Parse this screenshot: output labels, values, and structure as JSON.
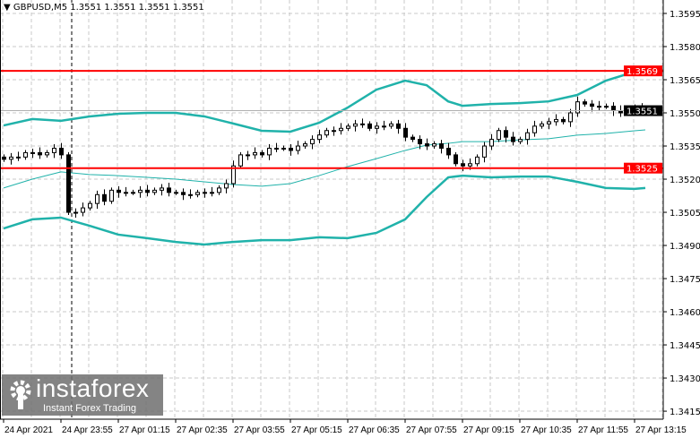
{
  "header": {
    "symbol": "GBPUSD,M5",
    "ohlc": "1.3551 1.3551 1.3551 1.3551"
  },
  "logo": {
    "brand": "instaforex",
    "tagline": "Instant Forex Trading"
  },
  "colors": {
    "bull_body": "#ffffff",
    "bear_body": "#000000",
    "band": "#20b2aa",
    "level": "#ff0000",
    "current_price_box": "#000000"
  },
  "chart_data": {
    "type": "candlestick",
    "ylim": [
      1.3407,
      1.36
    ],
    "y_ticks": [
      "1.3595",
      "1.3580",
      "1.3565",
      "1.3550",
      "1.3535",
      "1.3520",
      "1.3505",
      "1.3490",
      "1.3475",
      "1.3460",
      "1.3445",
      "1.3430",
      "1.3415"
    ],
    "x_ticks": [
      "24 Apr 2021",
      "24 Apr 23:55",
      "27 Apr 01:15",
      "27 Apr 02:35",
      "27 Apr 03:55",
      "27 Apr 05:15",
      "27 Apr 06:35",
      "27 Apr 07:55",
      "27 Apr 09:15",
      "27 Apr 10:35",
      "27 Apr 11:55",
      "27 Apr 13:15"
    ],
    "grid": true,
    "levels": [
      {
        "label": "1.3569",
        "value": 1.3569
      },
      {
        "label": "1.3525",
        "value": 1.3525
      }
    ],
    "current_price": {
      "label": "1.3551",
      "value": 1.3551
    },
    "day_separator_bar": 19,
    "closes_every_2_bars": [
      1.3529,
      1.353,
      1.353,
      1.3532,
      1.3532,
      1.3531,
      1.3532,
      1.3534,
      1.3531,
      1.3505,
      1.3505,
      1.3507,
      1.3509,
      1.3513,
      1.351,
      1.3515,
      1.3514,
      1.3514,
      1.3514,
      1.3515,
      1.3514,
      1.3515,
      1.3516,
      1.3514,
      1.3514,
      1.3513,
      1.3513,
      1.3514,
      1.3514,
      1.3514,
      1.3516,
      1.3518,
      1.3526,
      1.3531,
      1.3531,
      1.3532,
      1.3531,
      1.3534,
      1.3534,
      1.3534,
      1.3533,
      1.3535,
      1.3536,
      1.3538,
      1.354,
      1.3542,
      1.3542,
      1.3543,
      1.3544,
      1.3545,
      1.3545,
      1.3543,
      1.3544,
      1.3544,
      1.3545,
      1.3543,
      1.3539,
      1.3538,
      1.3536,
      1.3535,
      1.3536,
      1.3534,
      1.3531,
      1.3527,
      1.3526,
      1.3527,
      1.353,
      1.3535,
      1.3538,
      1.3542,
      1.3539,
      1.3537,
      1.3538,
      1.3541,
      1.3544,
      1.3545,
      1.3546,
      1.3547,
      1.3546,
      1.355,
      1.3555,
      1.3554,
      1.3553,
      1.3553,
      1.3553,
      1.3551,
      1.355,
      1.3551,
      1.3552,
      1.3551
    ],
    "bollinger_bar_index": [
      0,
      8,
      16,
      24,
      32,
      40,
      48,
      56,
      64,
      72,
      80,
      88,
      96,
      104,
      112,
      118,
      124,
      128,
      136,
      144,
      152,
      160,
      168,
      176,
      179
    ],
    "bollinger_upper": [
      1.35443,
      1.35472,
      1.35464,
      1.35484,
      1.35496,
      1.355,
      1.355,
      1.35484,
      1.35452,
      1.35419,
      1.35415,
      1.35455,
      1.35524,
      1.35605,
      1.35646,
      1.35625,
      1.35552,
      1.35532,
      1.3554,
      1.35544,
      1.35552,
      1.35581,
      1.35646,
      1.35686,
      1.35695
    ],
    "bollinger_middle": [
      1.3516,
      1.352,
      1.35233,
      1.35221,
      1.35216,
      1.35208,
      1.352,
      1.35188,
      1.35176,
      1.35168,
      1.3518,
      1.35216,
      1.35257,
      1.35293,
      1.3533,
      1.35354,
      1.35362,
      1.3537,
      1.3537,
      1.35378,
      1.35383,
      1.35399,
      1.35407,
      1.35419,
      1.35423
    ],
    "bollinger_lower": [
      1.34977,
      1.35018,
      1.35026,
      1.34989,
      1.34949,
      1.34933,
      1.34916,
      1.34904,
      1.34916,
      1.34924,
      1.34924,
      1.34937,
      1.34933,
      1.34957,
      1.35018,
      1.35119,
      1.35208,
      1.35216,
      1.35208,
      1.35212,
      1.35212,
      1.35188,
      1.3516,
      1.35156,
      1.3516
    ]
  }
}
